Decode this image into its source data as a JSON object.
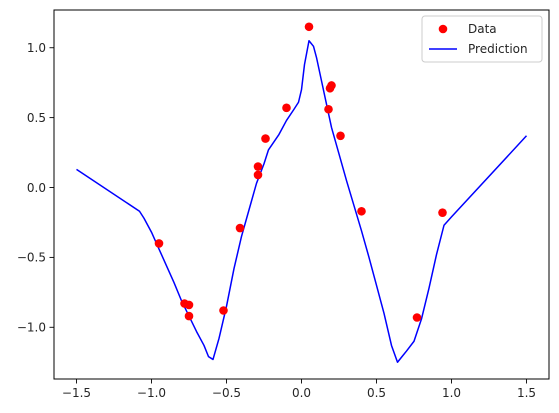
{
  "chart_data": {
    "type": "scatter",
    "title": "",
    "xlabel": "",
    "ylabel": "",
    "xlim": [
      -1.65,
      1.65
    ],
    "ylim": [
      -1.37,
      1.27
    ],
    "xticks": [
      -1.5,
      -1.0,
      -0.5,
      0.0,
      0.5,
      1.0,
      1.5
    ],
    "xtick_labels": [
      "−1.5",
      "−1.0",
      "−0.5",
      "0.0",
      "0.5",
      "1.0",
      "1.5"
    ],
    "yticks": [
      -1.0,
      -0.5,
      0.0,
      0.5,
      1.0
    ],
    "ytick_labels": [
      "−1.0",
      "−0.5",
      "0.0",
      "0.5",
      "1.0"
    ],
    "grid": false,
    "legend": {
      "location": "upper right",
      "entries": [
        "Data",
        "Prediction"
      ]
    },
    "series": [
      {
        "name": "Data",
        "kind": "scatter",
        "color": "#ff0000",
        "points": [
          [
            -0.95,
            -0.4
          ],
          [
            -0.78,
            -0.83
          ],
          [
            -0.75,
            -0.84
          ],
          [
            -0.75,
            -0.92
          ],
          [
            -0.52,
            -0.88
          ],
          [
            -0.41,
            -0.29
          ],
          [
            -0.29,
            0.15
          ],
          [
            -0.29,
            0.09
          ],
          [
            -0.24,
            0.35
          ],
          [
            -0.1,
            0.57
          ],
          [
            0.05,
            1.15
          ],
          [
            0.18,
            0.56
          ],
          [
            0.19,
            0.71
          ],
          [
            0.2,
            0.73
          ],
          [
            0.26,
            0.37
          ],
          [
            0.4,
            -0.17
          ],
          [
            0.77,
            -0.93
          ],
          [
            0.94,
            -0.18
          ]
        ]
      },
      {
        "name": "Prediction",
        "kind": "line",
        "color": "#0000ff",
        "points": [
          [
            -1.5,
            0.13
          ],
          [
            -1.08,
            -0.17
          ],
          [
            -1.05,
            -0.22
          ],
          [
            -1.0,
            -0.32
          ],
          [
            -0.95,
            -0.44
          ],
          [
            -0.9,
            -0.56
          ],
          [
            -0.85,
            -0.68
          ],
          [
            -0.8,
            -0.81
          ],
          [
            -0.75,
            -0.92
          ],
          [
            -0.7,
            -1.03
          ],
          [
            -0.65,
            -1.13
          ],
          [
            -0.62,
            -1.21
          ],
          [
            -0.59,
            -1.23
          ],
          [
            -0.55,
            -1.08
          ],
          [
            -0.5,
            -0.85
          ],
          [
            -0.45,
            -0.58
          ],
          [
            -0.4,
            -0.35
          ],
          [
            -0.35,
            -0.16
          ],
          [
            -0.3,
            0.03
          ],
          [
            -0.25,
            0.17
          ],
          [
            -0.22,
            0.27
          ],
          [
            -0.15,
            0.38
          ],
          [
            -0.1,
            0.48
          ],
          [
            -0.05,
            0.56
          ],
          [
            -0.02,
            0.61
          ],
          [
            0.0,
            0.7
          ],
          [
            0.02,
            0.88
          ],
          [
            0.05,
            1.05
          ],
          [
            0.08,
            1.01
          ],
          [
            0.1,
            0.93
          ],
          [
            0.15,
            0.68
          ],
          [
            0.2,
            0.43
          ],
          [
            0.25,
            0.24
          ],
          [
            0.3,
            0.05
          ],
          [
            0.35,
            -0.13
          ],
          [
            0.4,
            -0.31
          ],
          [
            0.45,
            -0.5
          ],
          [
            0.5,
            -0.7
          ],
          [
            0.55,
            -0.9
          ],
          [
            0.6,
            -1.13
          ],
          [
            0.64,
            -1.25
          ],
          [
            0.67,
            -1.21
          ],
          [
            0.7,
            -1.17
          ],
          [
            0.75,
            -1.1
          ],
          [
            0.8,
            -0.94
          ],
          [
            0.85,
            -0.72
          ],
          [
            0.9,
            -0.48
          ],
          [
            0.95,
            -0.27
          ],
          [
            1.0,
            -0.21
          ],
          [
            1.5,
            0.37
          ]
        ]
      }
    ]
  }
}
